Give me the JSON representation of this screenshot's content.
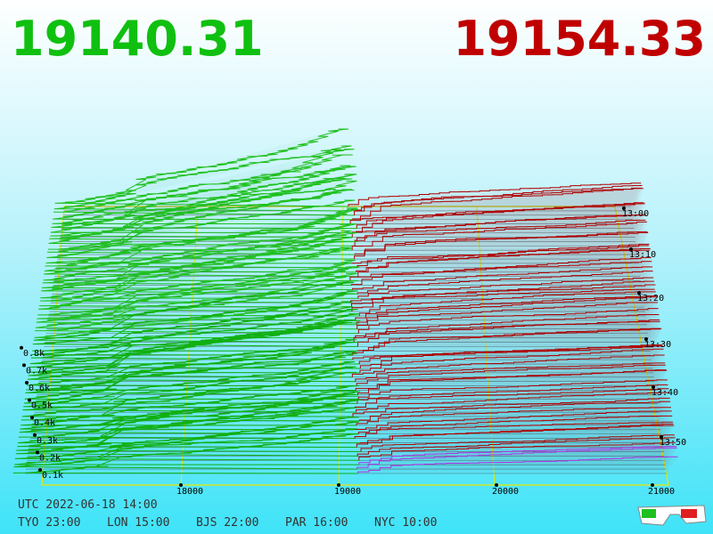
{
  "prices": {
    "bid": "19140.31",
    "ask": "19154.33"
  },
  "price_axis": [
    "18000",
    "19000",
    "20000",
    "21000"
  ],
  "depth_axis": [
    "0.1k",
    "0.2k",
    "0.3k",
    "0.4k",
    "0.5k",
    "0.6k",
    "0.7k",
    "0.8k"
  ],
  "time_axis": [
    "13:00",
    "13:10",
    "13:20",
    "13:30",
    "13:40",
    "13:50"
  ],
  "clock": {
    "utc": "UTC 2022-06-18 14:00",
    "cities": [
      "TYO 23:00",
      "LON 15:00",
      "BJS 22:00",
      "PAR 16:00",
      "NYC 10:00"
    ]
  }
}
